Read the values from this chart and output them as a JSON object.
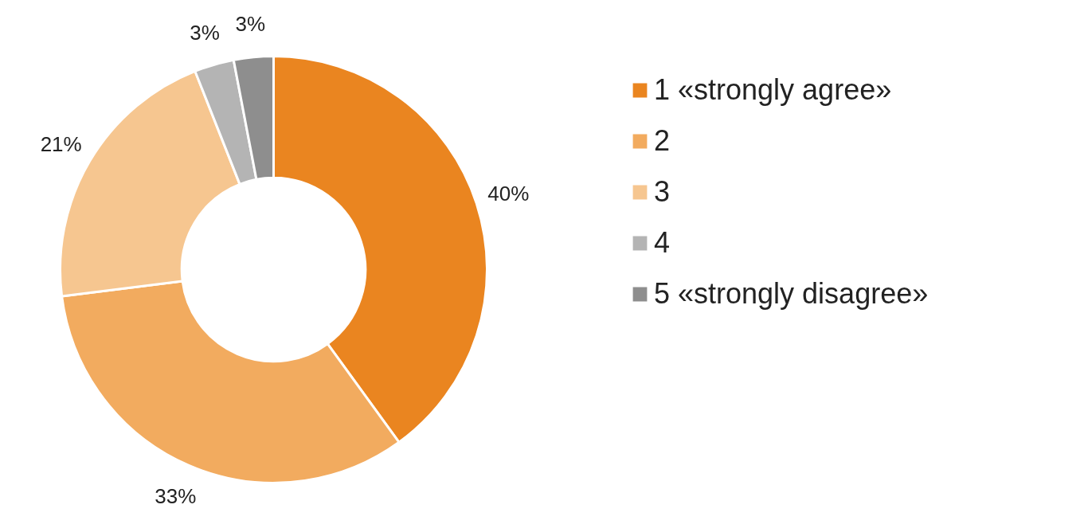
{
  "chart_data": {
    "type": "donut",
    "categories": [
      "1 «strongly agree»",
      "2",
      "3",
      "4",
      "5 «strongly disagree»"
    ],
    "values": [
      40,
      33,
      21,
      3,
      3
    ],
    "colors": [
      "#ea8520",
      "#f2ab5f",
      "#f6c690",
      "#b4b4b4",
      "#8e8e8e"
    ],
    "value_labels": [
      "40%",
      "33%",
      "21%",
      "3%",
      "3%"
    ],
    "legend": "right"
  }
}
